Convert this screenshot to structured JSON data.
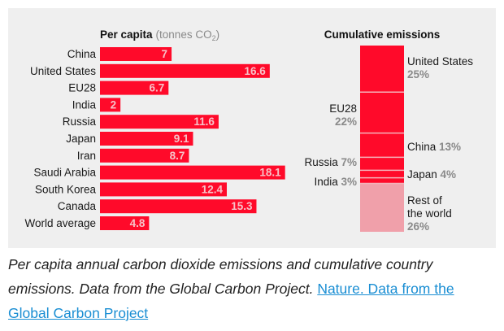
{
  "colors": {
    "bar": "#ff0a2a",
    "rest": "#f0a0aa",
    "panel": "#efefef",
    "value_text": "#f7c2c8",
    "pct_text": "#8a8a8a",
    "link": "#1a8ed3"
  },
  "chart_data": [
    {
      "type": "bar",
      "orientation": "horizontal",
      "title": "Per capita",
      "unit": "(tonnes CO",
      "unit_sub": "2",
      "unit_close": ")",
      "categories": [
        "China",
        "United States",
        "EU28",
        "India",
        "Russia",
        "Japan",
        "Iran",
        "Saudi Arabia",
        "South Korea",
        "Canada",
        "World average"
      ],
      "values": [
        7,
        16.6,
        6.7,
        2,
        11.6,
        9.1,
        8.7,
        18.1,
        12.4,
        15.3,
        4.8
      ],
      "value_labels": [
        "7",
        "16.6",
        "6.7",
        "2",
        "11.6",
        "9.1",
        "8.7",
        "18.1",
        "12.4",
        "15.3",
        "4.8"
      ],
      "xlim": [
        0,
        18.5
      ]
    },
    {
      "type": "bar",
      "orientation": "stacked-column",
      "title": "Cumulative emissions",
      "segments": [
        {
          "name": "United States",
          "value": 25,
          "label": "25%",
          "side": "right",
          "color": "bar"
        },
        {
          "name": "EU28",
          "value": 22,
          "label": "22%",
          "side": "left",
          "color": "bar"
        },
        {
          "name": "China",
          "value": 13,
          "label": "13%",
          "side": "right",
          "color": "bar"
        },
        {
          "name": "Russia",
          "value": 7,
          "label": "7%",
          "side": "left",
          "color": "bar"
        },
        {
          "name": "Japan",
          "value": 4,
          "label": "4%",
          "side": "right",
          "color": "bar"
        },
        {
          "name": "India",
          "value": 3,
          "label": "3%",
          "side": "left",
          "color": "bar"
        },
        {
          "name": "Rest of the world",
          "name_lines": [
            "Rest of",
            "the world"
          ],
          "value": 26,
          "label": "26%",
          "side": "right",
          "color": "rest"
        }
      ]
    }
  ],
  "caption": {
    "text": "Per capita annual carbon dioxide emissions and cumulative country emissions. Data from the Global Carbon Project. ",
    "link_text": "Nature. Data from the Global Carbon Project"
  }
}
